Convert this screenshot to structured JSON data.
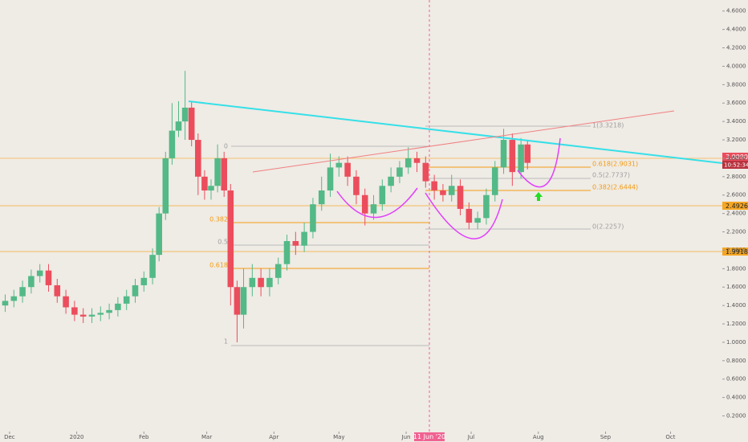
{
  "chart_data": {
    "type": "candlestick",
    "x": [
      -2,
      2,
      6,
      10,
      14,
      18,
      22,
      26,
      30,
      34,
      38,
      42,
      46,
      50,
      54,
      58,
      62,
      66,
      69,
      72,
      75,
      78,
      81,
      84,
      87,
      90,
      93,
      96,
      99,
      102,
      105,
      108,
      112,
      116,
      120,
      124,
      128,
      132,
      136,
      140,
      144,
      148,
      152,
      156,
      160,
      164,
      168,
      172,
      176,
      180,
      184,
      188,
      192,
      196,
      200,
      204,
      208,
      212,
      216,
      220,
      224,
      228,
      232,
      236,
      239
    ],
    "open": [
      1.4,
      1.45,
      1.5,
      1.6,
      1.72,
      1.78,
      1.62,
      1.5,
      1.38,
      1.3,
      1.28,
      1.3,
      1.32,
      1.35,
      1.42,
      1.5,
      1.62,
      1.7,
      1.95,
      2.4,
      3.0,
      3.3,
      3.4,
      3.55,
      3.2,
      2.8,
      2.65,
      2.7,
      3.0,
      2.65,
      1.6,
      1.3,
      1.6,
      1.7,
      1.6,
      1.7,
      1.85,
      2.1,
      2.05,
      2.2,
      2.5,
      2.65,
      2.9,
      2.95,
      2.8,
      2.6,
      2.4,
      2.5,
      2.7,
      2.8,
      2.9,
      3.0,
      2.95,
      2.75,
      2.65,
      2.6,
      2.7,
      2.45,
      2.3,
      2.35,
      2.6,
      2.9,
      3.2,
      2.85,
      3.15
    ],
    "high": [
      1.52,
      1.57,
      1.67,
      1.79,
      1.85,
      1.85,
      1.69,
      1.57,
      1.45,
      1.37,
      1.37,
      1.39,
      1.42,
      1.49,
      1.57,
      1.69,
      1.77,
      2.02,
      2.47,
      3.07,
      3.6,
      3.62,
      3.95,
      3.62,
      3.27,
      2.87,
      2.77,
      3.15,
      3.07,
      2.72,
      1.67,
      1.8,
      1.85,
      1.8,
      1.8,
      1.92,
      2.17,
      2.2,
      2.3,
      2.57,
      2.8,
      3.05,
      3.02,
      3.02,
      2.87,
      2.67,
      2.6,
      2.77,
      2.9,
      2.97,
      3.12,
      3.07,
      3.02,
      2.82,
      2.72,
      2.82,
      2.77,
      2.52,
      2.42,
      2.67,
      2.97,
      3.32,
      3.27,
      3.22,
      3.2
    ],
    "low": [
      1.33,
      1.38,
      1.43,
      1.53,
      1.65,
      1.55,
      1.43,
      1.31,
      1.23,
      1.21,
      1.21,
      1.23,
      1.25,
      1.28,
      1.35,
      1.43,
      1.55,
      1.63,
      1.88,
      2.33,
      2.93,
      3.23,
      3.2,
      3.13,
      2.6,
      2.55,
      2.55,
      2.63,
      2.58,
      1.4,
      1.0,
      1.15,
      1.5,
      1.5,
      1.5,
      1.63,
      1.78,
      1.95,
      1.98,
      2.13,
      2.43,
      2.58,
      2.8,
      2.7,
      2.5,
      2.27,
      2.33,
      2.43,
      2.63,
      2.73,
      2.83,
      2.85,
      2.68,
      2.55,
      2.53,
      2.53,
      2.38,
      2.23,
      2.23,
      2.28,
      2.53,
      2.83,
      2.7,
      2.78,
      2.88
    ],
    "close": [
      1.45,
      1.5,
      1.6,
      1.72,
      1.78,
      1.62,
      1.5,
      1.38,
      1.3,
      1.28,
      1.3,
      1.32,
      1.35,
      1.42,
      1.5,
      1.62,
      1.7,
      1.95,
      2.4,
      3.0,
      3.3,
      3.4,
      3.55,
      3.2,
      2.8,
      2.65,
      2.7,
      3.0,
      2.65,
      1.6,
      1.3,
      1.6,
      1.7,
      1.6,
      1.7,
      1.85,
      2.1,
      2.05,
      2.2,
      2.5,
      2.65,
      2.9,
      2.95,
      2.8,
      2.6,
      2.4,
      2.5,
      2.7,
      2.8,
      2.9,
      3.0,
      2.95,
      2.75,
      2.65,
      2.6,
      2.7,
      2.45,
      2.3,
      2.35,
      2.6,
      2.9,
      3.2,
      2.85,
      3.15,
      2.95
    ],
    "up_color": "#53b987",
    "down_color": "#eb4d5c",
    "xlim": [
      -4.4,
      328.9
    ],
    "xticks": [
      {
        "value": 0,
        "label": "Dec"
      },
      {
        "value": 31,
        "label": "2020"
      },
      {
        "value": 62,
        "label": "Feb"
      },
      {
        "value": 91,
        "label": "Mar"
      },
      {
        "value": 122,
        "label": "Apr"
      },
      {
        "value": 152,
        "label": "May"
      },
      {
        "value": 183,
        "label": "Jun"
      },
      {
        "value": 213,
        "label": "Jul"
      },
      {
        "value": 244,
        "label": "Aug"
      },
      {
        "value": 275,
        "label": "Sep"
      },
      {
        "value": 305,
        "label": "Oct"
      }
    ],
    "ylim": [
      0.03,
      4.72
    ],
    "yticks": [
      {
        "value": 0.2,
        "label": "0.2000"
      },
      {
        "value": 0.4,
        "label": "0.4000"
      },
      {
        "value": 0.6,
        "label": "0.6000"
      },
      {
        "value": 0.8,
        "label": "0.8000"
      },
      {
        "value": 1.0,
        "label": "1.0000"
      },
      {
        "value": 1.2,
        "label": "1.2000"
      },
      {
        "value": 1.4,
        "label": "1.4000"
      },
      {
        "value": 1.6,
        "label": "1.6000"
      },
      {
        "value": 1.8,
        "label": "1.8000"
      },
      {
        "value": 2.0,
        "label": "2.0000"
      },
      {
        "value": 2.2,
        "label": "2.2000"
      },
      {
        "value": 2.4,
        "label": "2.4000"
      },
      {
        "value": 2.6,
        "label": "2.6000"
      },
      {
        "value": 2.8,
        "label": "2.8000"
      },
      {
        "value": 3.0,
        "label": "3.0000"
      },
      {
        "value": 3.2,
        "label": "3.2000"
      },
      {
        "value": 3.4,
        "label": "3.4000"
      },
      {
        "value": 3.6,
        "label": "3.6000"
      },
      {
        "value": 3.8,
        "label": "3.8000"
      },
      {
        "value": 4.0,
        "label": "4.0000"
      },
      {
        "value": 4.2,
        "label": "4.2000"
      },
      {
        "value": 4.4,
        "label": "4.4000"
      },
      {
        "value": 4.6,
        "label": "4.6000"
      }
    ]
  },
  "annotations": {
    "price_tags": [
      "3.0090",
      "10:52:34",
      "2.4926",
      "1.9918"
    ],
    "right_fib": [
      "1(3.3218)",
      "0.618(2.9031)",
      "0.5(2.7737)",
      "0.382(2.6444)",
      "0(2.2257)"
    ],
    "left_fib": [
      "0",
      "0.382",
      "0.5",
      "0.618",
      "1"
    ],
    "date_marker": "11 Jun '20"
  }
}
